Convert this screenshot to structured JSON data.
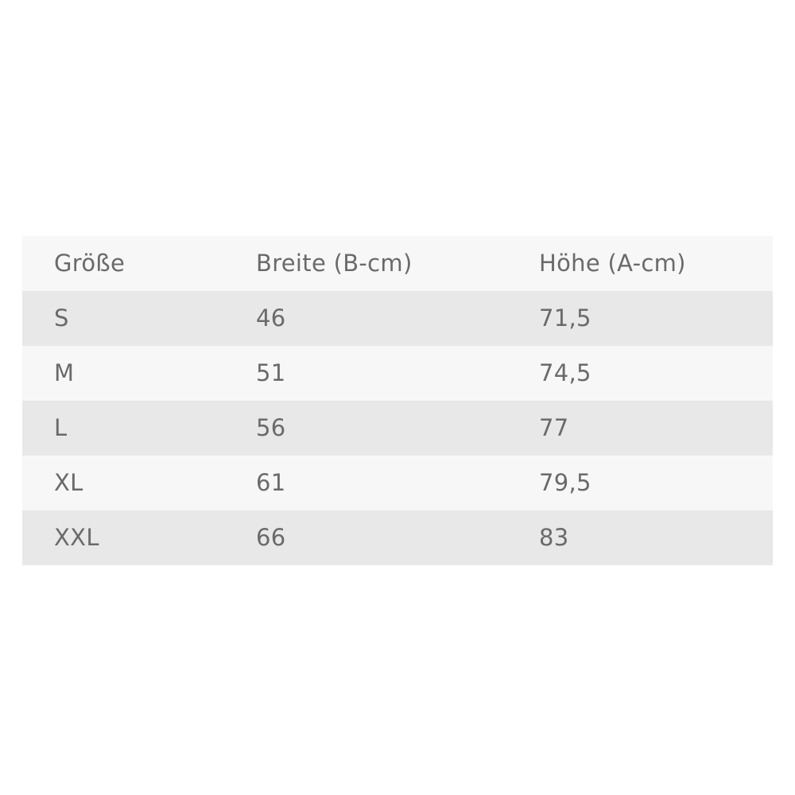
{
  "table": {
    "headers": [
      "Größe",
      "Breite (B-cm)",
      "Höhe (A-cm)"
    ],
    "rows": [
      [
        "S",
        "46",
        "71,5"
      ],
      [
        "M",
        "51",
        "74,5"
      ],
      [
        "L",
        "56",
        "77"
      ],
      [
        "XL",
        "61",
        "79,5"
      ],
      [
        "XXL",
        "66",
        "83"
      ]
    ]
  },
  "colors": {
    "row_light": "#f7f7f7",
    "row_dark": "#e8e8e8",
    "text": "#6a6a6a"
  }
}
